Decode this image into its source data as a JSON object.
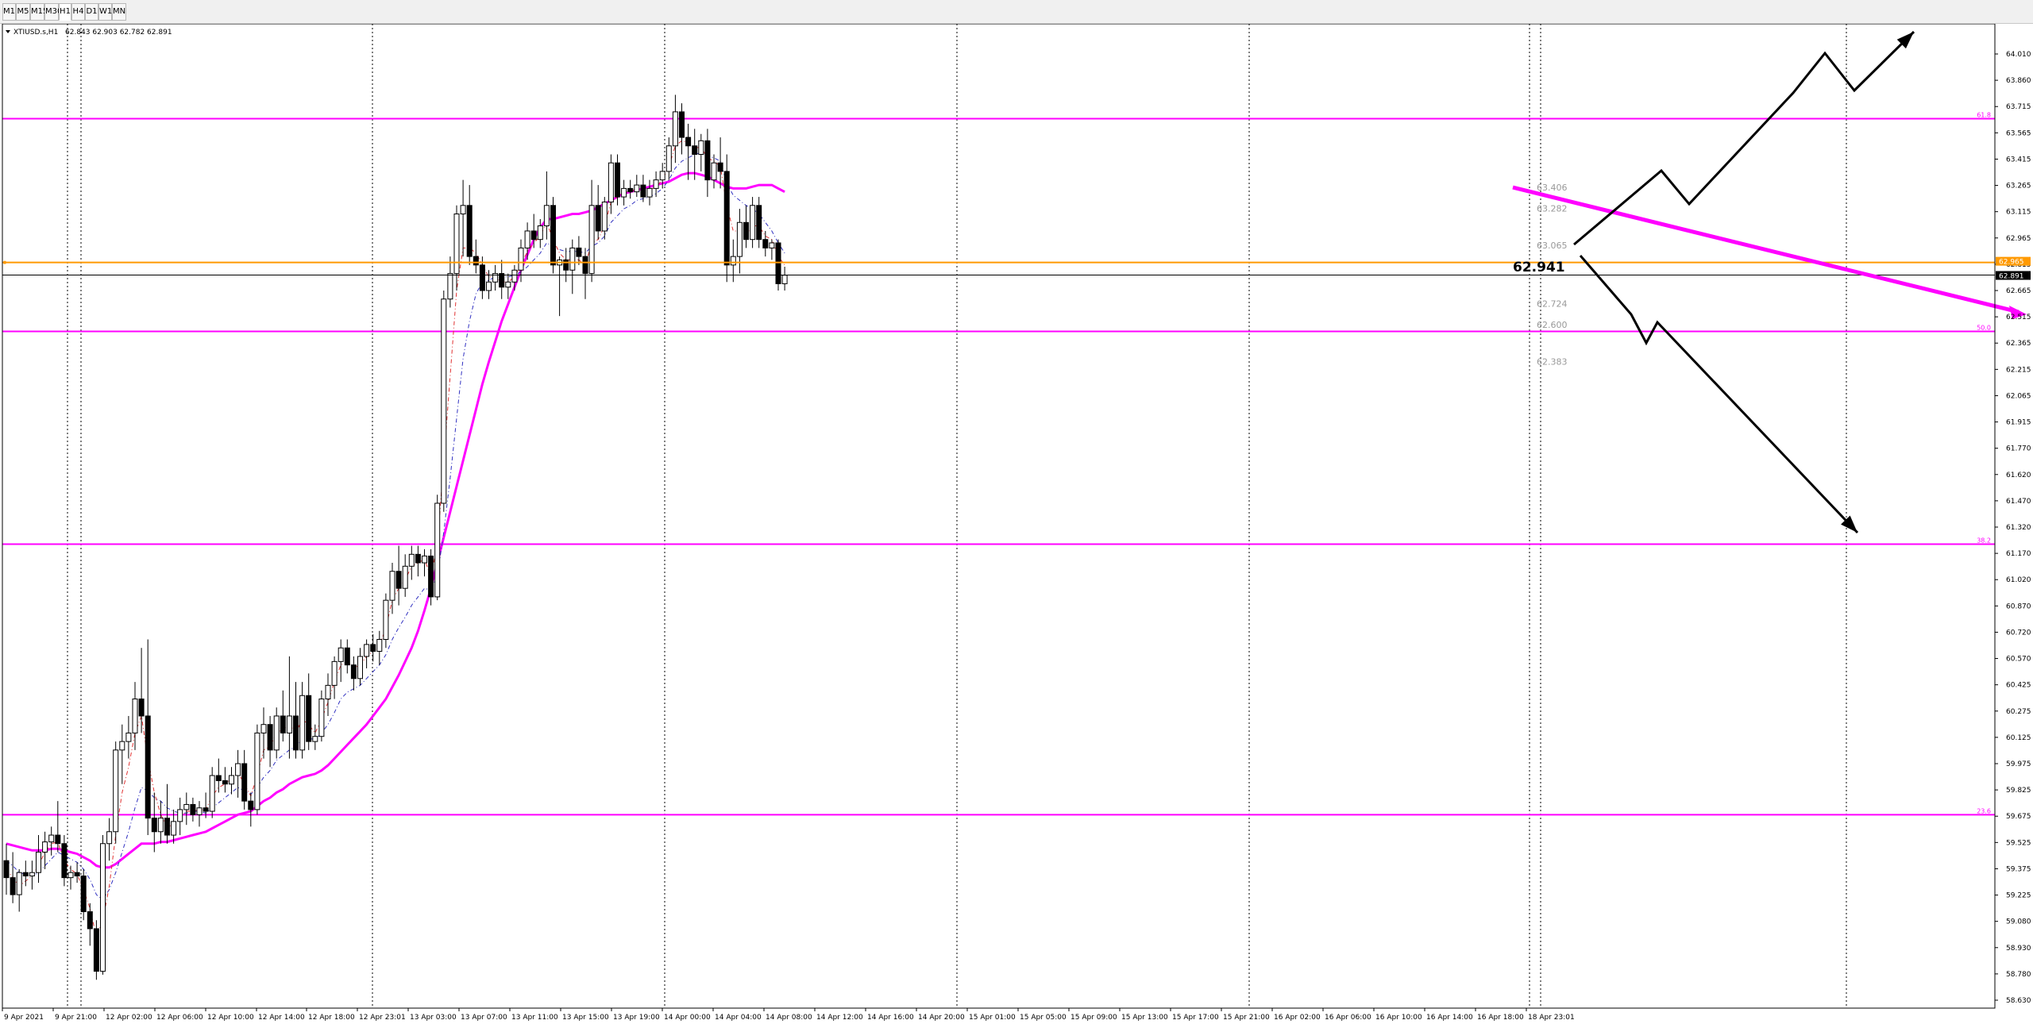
{
  "timeframes": [
    "M1",
    "M5",
    "M15",
    "M30",
    "H1",
    "H4",
    "D1",
    "W1",
    "MN"
  ],
  "active_timeframe": "H1",
  "chart_header": {
    "symbol_label": "XTIUSD.s,H1",
    "ohlc_label": "62.843 62.903 62.782 62.891"
  },
  "chart_data": {
    "type": "candlestick",
    "symbol": "XTIUSD.s",
    "period": "H1",
    "ylim": [
      58.63,
      64.19
    ],
    "y_ticks": [
      "64.010",
      "63.860",
      "63.715",
      "63.565",
      "63.415",
      "63.265",
      "63.115",
      "62.965",
      "62.815",
      "62.665",
      "62.515",
      "62.365",
      "62.215",
      "62.065",
      "61.915",
      "61.770",
      "61.620",
      "61.470",
      "61.320",
      "61.170",
      "61.020",
      "60.870",
      "60.720",
      "60.570",
      "60.425",
      "60.275",
      "60.125",
      "59.975",
      "59.825",
      "59.675",
      "59.525",
      "59.375",
      "59.225",
      "59.080",
      "58.930",
      "58.780",
      "58.630"
    ],
    "x_ticks": [
      "9 Apr 2021",
      "9 Apr 21:00",
      "12 Apr 02:00",
      "12 Apr 06:00",
      "12 Apr 10:00",
      "12 Apr 14:00",
      "12 Apr 18:00",
      "12 Apr 23:01",
      "13 Apr 03:00",
      "13 Apr 07:00",
      "13 Apr 11:00",
      "13 Apr 15:00",
      "13 Apr 19:00",
      "14 Apr 00:00",
      "14 Apr 04:00",
      "14 Apr 08:00",
      "14 Apr 12:00",
      "14 Apr 16:00",
      "14 Apr 20:00",
      "15 Apr 01:00",
      "15 Apr 05:00",
      "15 Apr 09:00",
      "15 Apr 13:00",
      "15 Apr 17:00",
      "15 Apr 21:00",
      "16 Apr 02:00",
      "16 Apr 06:00",
      "16 Apr 10:00",
      "16 Apr 14:00",
      "16 Apr 18:00",
      "18 Apr 23:01"
    ],
    "candles": [
      {
        "o": 59.45,
        "h": 59.55,
        "l": 59.25,
        "c": 59.35
      },
      {
        "o": 59.35,
        "h": 59.5,
        "l": 59.2,
        "c": 59.25
      },
      {
        "o": 59.25,
        "h": 59.4,
        "l": 59.15,
        "c": 59.38
      },
      {
        "o": 59.38,
        "h": 59.45,
        "l": 59.3,
        "c": 59.36
      },
      {
        "o": 59.36,
        "h": 59.45,
        "l": 59.28,
        "c": 59.38
      },
      {
        "o": 59.38,
        "h": 59.6,
        "l": 59.32,
        "c": 59.5
      },
      {
        "o": 59.5,
        "h": 59.62,
        "l": 59.4,
        "c": 59.56
      },
      {
        "o": 59.56,
        "h": 59.65,
        "l": 59.48,
        "c": 59.6
      },
      {
        "o": 59.6,
        "h": 59.8,
        "l": 59.5,
        "c": 59.55
      },
      {
        "o": 59.55,
        "h": 59.6,
        "l": 59.3,
        "c": 59.35
      },
      {
        "o": 59.35,
        "h": 59.42,
        "l": 59.28,
        "c": 59.38
      },
      {
        "o": 59.38,
        "h": 59.44,
        "l": 59.32,
        "c": 59.36
      },
      {
        "o": 59.36,
        "h": 59.4,
        "l": 59.1,
        "c": 59.15
      },
      {
        "o": 59.15,
        "h": 59.2,
        "l": 58.95,
        "c": 59.05
      },
      {
        "o": 59.05,
        "h": 59.1,
        "l": 58.75,
        "c": 58.8
      },
      {
        "o": 58.8,
        "h": 59.6,
        "l": 58.78,
        "c": 59.55
      },
      {
        "o": 59.55,
        "h": 59.7,
        "l": 59.45,
        "c": 59.62
      },
      {
        "o": 59.62,
        "h": 60.15,
        "l": 59.55,
        "c": 60.1
      },
      {
        "o": 60.1,
        "h": 60.25,
        "l": 59.9,
        "c": 60.15
      },
      {
        "o": 60.15,
        "h": 60.3,
        "l": 60.05,
        "c": 60.2
      },
      {
        "o": 60.2,
        "h": 60.5,
        "l": 60.1,
        "c": 60.4
      },
      {
        "o": 60.4,
        "h": 60.7,
        "l": 60.2,
        "c": 60.3
      },
      {
        "o": 60.3,
        "h": 60.75,
        "l": 59.6,
        "c": 59.7
      },
      {
        "o": 59.7,
        "h": 59.85,
        "l": 59.5,
        "c": 59.62
      },
      {
        "o": 59.62,
        "h": 59.8,
        "l": 59.55,
        "c": 59.7
      },
      {
        "o": 59.7,
        "h": 59.9,
        "l": 59.55,
        "c": 59.6
      },
      {
        "o": 59.6,
        "h": 59.75,
        "l": 59.55,
        "c": 59.68
      },
      {
        "o": 59.68,
        "h": 59.82,
        "l": 59.6,
        "c": 59.75
      },
      {
        "o": 59.75,
        "h": 59.85,
        "l": 59.66,
        "c": 59.78
      },
      {
        "o": 59.78,
        "h": 59.82,
        "l": 59.68,
        "c": 59.72
      },
      {
        "o": 59.72,
        "h": 59.8,
        "l": 59.65,
        "c": 59.76
      },
      {
        "o": 59.76,
        "h": 59.85,
        "l": 59.7,
        "c": 59.74
      },
      {
        "o": 59.74,
        "h": 60.0,
        "l": 59.7,
        "c": 59.95
      },
      {
        "o": 59.95,
        "h": 60.05,
        "l": 59.85,
        "c": 59.92
      },
      {
        "o": 59.92,
        "h": 60.0,
        "l": 59.85,
        "c": 59.9
      },
      {
        "o": 59.9,
        "h": 60.0,
        "l": 59.84,
        "c": 59.95
      },
      {
        "o": 59.95,
        "h": 60.1,
        "l": 59.82,
        "c": 60.02
      },
      {
        "o": 60.02,
        "h": 60.1,
        "l": 59.75,
        "c": 59.8
      },
      {
        "o": 59.8,
        "h": 59.85,
        "l": 59.65,
        "c": 59.75
      },
      {
        "o": 59.75,
        "h": 60.25,
        "l": 59.72,
        "c": 60.2
      },
      {
        "o": 60.2,
        "h": 60.35,
        "l": 60.05,
        "c": 60.25
      },
      {
        "o": 60.25,
        "h": 60.3,
        "l": 60.0,
        "c": 60.1
      },
      {
        "o": 60.1,
        "h": 60.35,
        "l": 60.05,
        "c": 60.3
      },
      {
        "o": 60.3,
        "h": 60.45,
        "l": 60.15,
        "c": 60.2
      },
      {
        "o": 60.2,
        "h": 60.65,
        "l": 60.05,
        "c": 60.3
      },
      {
        "o": 60.3,
        "h": 60.5,
        "l": 60.05,
        "c": 60.1
      },
      {
        "o": 60.1,
        "h": 60.5,
        "l": 60.05,
        "c": 60.42
      },
      {
        "o": 60.42,
        "h": 60.55,
        "l": 60.1,
        "c": 60.15
      },
      {
        "o": 60.15,
        "h": 60.25,
        "l": 60.1,
        "c": 60.18
      },
      {
        "o": 60.18,
        "h": 60.45,
        "l": 60.15,
        "c": 60.4
      },
      {
        "o": 60.4,
        "h": 60.55,
        "l": 60.3,
        "c": 60.48
      },
      {
        "o": 60.48,
        "h": 60.65,
        "l": 60.4,
        "c": 60.62
      },
      {
        "o": 60.62,
        "h": 60.75,
        "l": 60.5,
        "c": 60.7
      },
      {
        "o": 60.7,
        "h": 60.75,
        "l": 60.55,
        "c": 60.6
      },
      {
        "o": 60.6,
        "h": 60.65,
        "l": 60.45,
        "c": 60.52
      },
      {
        "o": 60.52,
        "h": 60.7,
        "l": 60.48,
        "c": 60.65
      },
      {
        "o": 60.65,
        "h": 60.75,
        "l": 60.58,
        "c": 60.72
      },
      {
        "o": 60.72,
        "h": 60.78,
        "l": 60.62,
        "c": 60.68
      },
      {
        "o": 60.68,
        "h": 60.8,
        "l": 60.6,
        "c": 60.75
      },
      {
        "o": 60.75,
        "h": 61.02,
        "l": 60.7,
        "c": 60.98
      },
      {
        "o": 60.98,
        "h": 61.2,
        "l": 60.9,
        "c": 61.15
      },
      {
        "o": 61.15,
        "h": 61.3,
        "l": 60.95,
        "c": 61.05
      },
      {
        "o": 61.05,
        "h": 61.25,
        "l": 61.0,
        "c": 61.18
      },
      {
        "o": 61.18,
        "h": 61.3,
        "l": 61.1,
        "c": 61.25
      },
      {
        "o": 61.25,
        "h": 61.3,
        "l": 61.12,
        "c": 61.2
      },
      {
        "o": 61.2,
        "h": 61.28,
        "l": 61.12,
        "c": 61.24
      },
      {
        "o": 61.24,
        "h": 61.28,
        "l": 60.95,
        "c": 61.0
      },
      {
        "o": 61.0,
        "h": 61.6,
        "l": 60.98,
        "c": 61.55
      },
      {
        "o": 61.55,
        "h": 62.8,
        "l": 61.5,
        "c": 62.75
      },
      {
        "o": 62.75,
        "h": 63.0,
        "l": 62.7,
        "c": 62.9
      },
      {
        "o": 62.9,
        "h": 63.3,
        "l": 62.8,
        "c": 63.25
      },
      {
        "o": 63.25,
        "h": 63.45,
        "l": 63.0,
        "c": 63.3
      },
      {
        "o": 63.3,
        "h": 63.42,
        "l": 62.95,
        "c": 63.0
      },
      {
        "o": 63.0,
        "h": 63.1,
        "l": 62.9,
        "c": 62.95
      },
      {
        "o": 62.95,
        "h": 63.0,
        "l": 62.75,
        "c": 62.8
      },
      {
        "o": 62.8,
        "h": 62.92,
        "l": 62.75,
        "c": 62.85
      },
      {
        "o": 62.85,
        "h": 62.95,
        "l": 62.8,
        "c": 62.9
      },
      {
        "o": 62.9,
        "h": 62.98,
        "l": 62.75,
        "c": 62.82
      },
      {
        "o": 62.82,
        "h": 62.9,
        "l": 62.75,
        "c": 62.85
      },
      {
        "o": 62.85,
        "h": 62.95,
        "l": 62.8,
        "c": 62.92
      },
      {
        "o": 62.92,
        "h": 63.1,
        "l": 62.85,
        "c": 63.05
      },
      {
        "o": 63.05,
        "h": 63.2,
        "l": 62.98,
        "c": 63.15
      },
      {
        "o": 63.15,
        "h": 63.25,
        "l": 63.05,
        "c": 63.1
      },
      {
        "o": 63.1,
        "h": 63.22,
        "l": 63.05,
        "c": 63.18
      },
      {
        "o": 63.18,
        "h": 63.5,
        "l": 63.1,
        "c": 63.3
      },
      {
        "o": 63.3,
        "h": 63.35,
        "l": 62.9,
        "c": 62.95
      },
      {
        "o": 62.95,
        "h": 63.0,
        "l": 62.65,
        "c": 62.98
      },
      {
        "o": 62.98,
        "h": 63.05,
        "l": 62.85,
        "c": 62.92
      },
      {
        "o": 62.92,
        "h": 63.1,
        "l": 62.78,
        "c": 63.05
      },
      {
        "o": 63.05,
        "h": 63.12,
        "l": 62.95,
        "c": 63.0
      },
      {
        "o": 63.0,
        "h": 63.05,
        "l": 62.75,
        "c": 62.9
      },
      {
        "o": 62.9,
        "h": 63.45,
        "l": 62.85,
        "c": 63.3
      },
      {
        "o": 63.3,
        "h": 63.42,
        "l": 63.1,
        "c": 63.15
      },
      {
        "o": 63.15,
        "h": 63.35,
        "l": 63.1,
        "c": 63.32
      },
      {
        "o": 63.32,
        "h": 63.6,
        "l": 63.25,
        "c": 63.55
      },
      {
        "o": 63.55,
        "h": 63.6,
        "l": 63.3,
        "c": 63.35
      },
      {
        "o": 63.35,
        "h": 63.45,
        "l": 63.3,
        "c": 63.4
      },
      {
        "o": 63.4,
        "h": 63.45,
        "l": 63.34,
        "c": 63.38
      },
      {
        "o": 63.38,
        "h": 63.48,
        "l": 63.35,
        "c": 63.42
      },
      {
        "o": 63.42,
        "h": 63.48,
        "l": 63.32,
        "c": 63.35
      },
      {
        "o": 63.35,
        "h": 63.45,
        "l": 63.3,
        "c": 63.4
      },
      {
        "o": 63.4,
        "h": 63.5,
        "l": 63.35,
        "c": 63.45
      },
      {
        "o": 63.45,
        "h": 63.55,
        "l": 63.4,
        "c": 63.5
      },
      {
        "o": 63.5,
        "h": 63.7,
        "l": 63.45,
        "c": 63.65
      },
      {
        "o": 63.65,
        "h": 63.95,
        "l": 63.55,
        "c": 63.85
      },
      {
        "o": 63.85,
        "h": 63.9,
        "l": 63.6,
        "c": 63.7
      },
      {
        "o": 63.7,
        "h": 63.78,
        "l": 63.45,
        "c": 63.65
      },
      {
        "o": 63.65,
        "h": 63.75,
        "l": 63.45,
        "c": 63.6
      },
      {
        "o": 63.6,
        "h": 63.72,
        "l": 63.5,
        "c": 63.68
      },
      {
        "o": 63.68,
        "h": 63.75,
        "l": 63.35,
        "c": 63.45
      },
      {
        "o": 63.45,
        "h": 63.6,
        "l": 63.4,
        "c": 63.55
      },
      {
        "o": 63.55,
        "h": 63.7,
        "l": 63.4,
        "c": 63.5
      },
      {
        "o": 63.5,
        "h": 63.6,
        "l": 62.85,
        "c": 62.95
      },
      {
        "o": 62.95,
        "h": 63.1,
        "l": 62.85,
        "c": 63.0
      },
      {
        "o": 63.0,
        "h": 63.28,
        "l": 62.9,
        "c": 63.2
      },
      {
        "o": 63.2,
        "h": 63.3,
        "l": 63.05,
        "c": 63.1
      },
      {
        "o": 63.1,
        "h": 63.35,
        "l": 63.05,
        "c": 63.3
      },
      {
        "o": 63.3,
        "h": 63.35,
        "l": 63.05,
        "c": 63.1
      },
      {
        "o": 63.1,
        "h": 63.15,
        "l": 63.0,
        "c": 63.05
      },
      {
        "o": 63.05,
        "h": 63.1,
        "l": 62.98,
        "c": 63.08
      },
      {
        "o": 63.08,
        "h": 63.1,
        "l": 62.8,
        "c": 62.84
      },
      {
        "o": 62.84,
        "h": 62.94,
        "l": 62.8,
        "c": 62.89
      }
    ],
    "ma_fast": [
      59.4,
      59.35,
      59.3,
      59.33,
      59.36,
      59.42,
      59.5,
      59.55,
      59.56,
      59.45,
      59.4,
      59.37,
      59.28,
      59.17,
      59.0,
      59.1,
      59.3,
      59.6,
      59.85,
      60.0,
      60.2,
      60.3,
      60.05,
      59.85,
      59.72,
      59.65,
      59.66,
      59.7,
      59.74,
      59.74,
      59.75,
      59.75,
      59.83,
      59.88,
      59.9,
      59.93,
      59.97,
      59.9,
      59.83,
      59.95,
      60.1,
      60.12,
      60.2,
      60.22,
      60.25,
      60.2,
      60.28,
      60.25,
      60.2,
      60.28,
      60.38,
      60.5,
      60.6,
      60.62,
      60.58,
      60.6,
      60.65,
      60.68,
      60.71,
      60.82,
      60.98,
      61.05,
      61.1,
      61.18,
      61.2,
      61.22,
      61.12,
      61.3,
      61.8,
      62.3,
      62.8,
      63.05,
      63.05,
      63.02,
      62.95,
      62.88,
      62.88,
      62.85,
      62.85,
      62.88,
      62.95,
      63.03,
      63.08,
      63.12,
      63.2,
      63.1,
      63.02,
      62.98,
      62.98,
      62.98,
      62.95,
      63.08,
      63.1,
      63.18,
      63.32,
      63.35,
      63.38,
      63.38,
      63.4,
      63.38,
      63.39,
      63.41,
      63.45,
      63.53,
      63.65,
      63.68,
      63.67,
      63.64,
      63.64,
      63.58,
      63.56,
      63.53,
      63.3,
      63.15,
      63.15,
      63.13,
      63.18,
      63.18,
      63.12,
      63.1,
      63.0,
      62.95
    ],
    "ma_medium": [
      59.45,
      59.42,
      59.38,
      59.37,
      59.36,
      59.38,
      59.42,
      59.46,
      59.5,
      59.48,
      59.46,
      59.44,
      59.4,
      59.34,
      59.25,
      59.22,
      59.28,
      59.38,
      59.5,
      59.62,
      59.76,
      59.88,
      59.86,
      59.82,
      59.8,
      59.76,
      59.74,
      59.73,
      59.73,
      59.74,
      59.74,
      59.73,
      59.76,
      59.79,
      59.82,
      59.85,
      59.88,
      59.86,
      59.84,
      59.88,
      59.94,
      59.98,
      60.04,
      60.07,
      60.1,
      60.12,
      60.16,
      60.17,
      60.16,
      60.2,
      60.25,
      60.32,
      60.4,
      60.44,
      60.46,
      60.48,
      60.52,
      60.56,
      60.6,
      60.66,
      60.75,
      60.82,
      60.88,
      60.95,
      61.0,
      61.05,
      61.04,
      61.12,
      61.38,
      61.7,
      62.05,
      62.4,
      62.62,
      62.78,
      62.85,
      62.86,
      62.88,
      62.88,
      62.88,
      62.89,
      62.91,
      62.94,
      62.98,
      63.02,
      63.08,
      63.06,
      63.04,
      63.03,
      63.03,
      63.03,
      63.02,
      63.06,
      63.08,
      63.12,
      63.2,
      63.24,
      63.28,
      63.3,
      63.33,
      63.34,
      63.35,
      63.37,
      63.4,
      63.45,
      63.52,
      63.56,
      63.58,
      63.6,
      63.61,
      63.59,
      63.58,
      63.56,
      63.43,
      63.36,
      63.33,
      63.3,
      63.28,
      63.25,
      63.2,
      63.15,
      63.08,
      63.02
    ],
    "ma_slow": [
      59.55,
      59.54,
      59.53,
      59.52,
      59.51,
      59.51,
      59.51,
      59.52,
      59.52,
      59.51,
      59.5,
      59.49,
      59.47,
      59.45,
      59.42,
      59.41,
      59.41,
      59.43,
      59.46,
      59.49,
      59.52,
      59.55,
      59.55,
      59.55,
      59.56,
      59.56,
      59.57,
      59.58,
      59.59,
      59.6,
      59.61,
      59.62,
      59.64,
      59.66,
      59.68,
      59.7,
      59.72,
      59.73,
      59.74,
      59.77,
      59.8,
      59.82,
      59.85,
      59.87,
      59.9,
      59.92,
      59.94,
      59.95,
      59.96,
      59.98,
      60.01,
      60.05,
      60.09,
      60.13,
      60.17,
      60.21,
      60.25,
      60.3,
      60.35,
      60.4,
      60.47,
      60.54,
      60.62,
      60.7,
      60.8,
      60.92,
      61.05,
      61.2,
      61.35,
      61.5,
      61.65,
      61.8,
      61.95,
      62.1,
      62.25,
      62.38,
      62.5,
      62.62,
      62.72,
      62.82,
      62.92,
      63.01,
      63.1,
      63.17,
      63.22,
      63.22,
      63.23,
      63.24,
      63.25,
      63.25,
      63.26,
      63.27,
      63.29,
      63.31,
      63.33,
      63.35,
      63.37,
      63.38,
      63.39,
      63.4,
      63.41,
      63.42,
      63.43,
      63.44,
      63.46,
      63.48,
      63.49,
      63.49,
      63.48,
      63.47,
      63.45,
      63.43,
      63.41,
      63.4,
      63.4,
      63.4,
      63.41,
      63.42,
      63.42,
      63.42,
      63.4,
      63.38
    ],
    "fib_levels": [
      {
        "label": "61.8",
        "price": 63.81
      },
      {
        "label": "50.0",
        "price": 62.56
      },
      {
        "label": "38.2",
        "price": 61.31
      },
      {
        "label": "23.6",
        "price": 59.72
      }
    ],
    "orange_line": 62.965,
    "current_price": 62.891,
    "price_box_label": "62.891",
    "orange_box_label": "62.965",
    "big_price_label": "62.941",
    "gray_levels": [
      {
        "label": "63.406",
        "price": 63.406
      },
      {
        "label": "63.282",
        "price": 63.282
      },
      {
        "label": "63.065",
        "price": 63.065
      },
      {
        "label": "62.724",
        "price": 62.724
      },
      {
        "label": "62.600",
        "price": 62.6
      },
      {
        "label": "62.383",
        "price": 62.383
      }
    ],
    "colors": {
      "fib": "#ff00ff",
      "orange": "#ff9900",
      "ma_fast": "#e03030",
      "ma_medium": "#3030c0",
      "ma_slow": "#ff00ff",
      "arrows": "#000000",
      "candle_bull": "#ffffff",
      "candle_bear": "#000000",
      "grid": "#000000"
    }
  }
}
